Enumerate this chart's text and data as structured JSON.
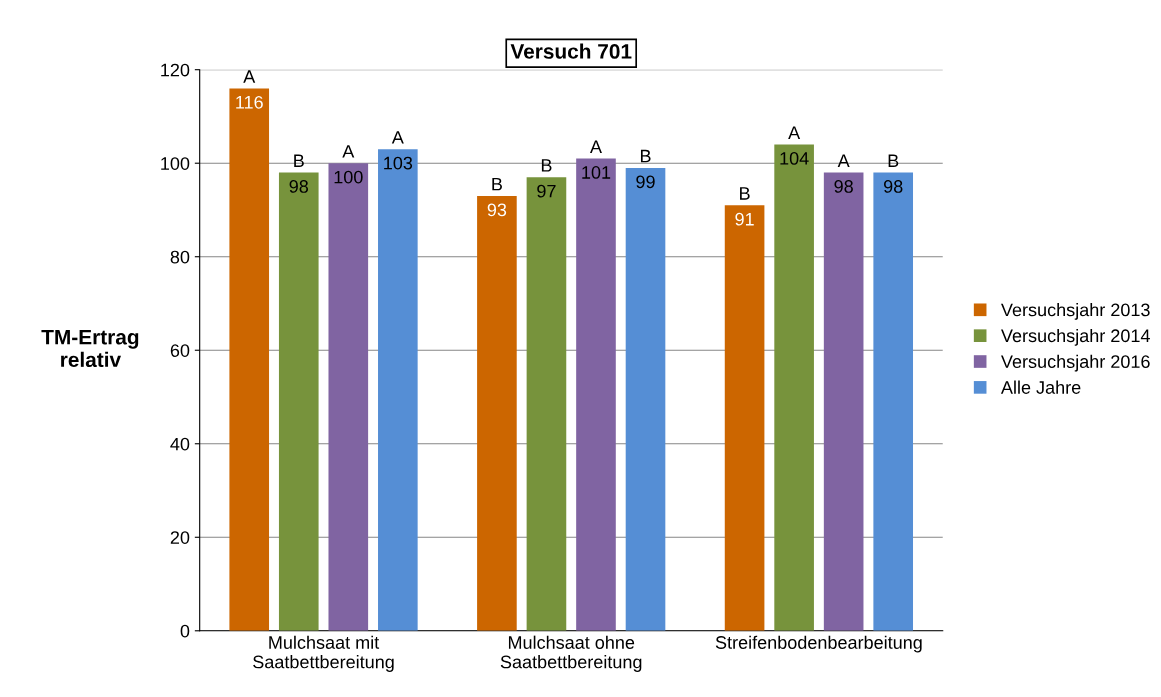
{
  "chart_data": {
    "type": "bar",
    "title": "Versuch 701",
    "ylabel": "TM-Ertrag\nrelativ",
    "categories": [
      "Mulchsaat mit\nSaatbettbereitung",
      "Mulchsaat ohne\nSaatbettbereitung",
      "Streifenbodenbearbeitung"
    ],
    "series": [
      {
        "name": "Versuchsjahr 2013",
        "color": "#cc6600",
        "values": [
          116,
          93,
          91
        ]
      },
      {
        "name": "Versuchsjahr 2014",
        "color": "#77933c",
        "values": [
          98,
          97,
          104
        ]
      },
      {
        "name": "Versuchsjahr 2016",
        "color": "#8064a2",
        "values": [
          100,
          101,
          98
        ]
      },
      {
        "name": "Alle Jahre",
        "color": "#558ed5",
        "values": [
          103,
          99,
          98
        ]
      }
    ],
    "ylim": [
      0,
      120
    ],
    "yticks": [
      0,
      20,
      40,
      60,
      80,
      100,
      120
    ],
    "grid": "y",
    "legend": "right",
    "data_labels": true,
    "annotations": [
      "A",
      "B",
      "B",
      "B",
      "B",
      "A",
      "A",
      "A",
      "A",
      "A",
      "B",
      "B"
    ]
  }
}
